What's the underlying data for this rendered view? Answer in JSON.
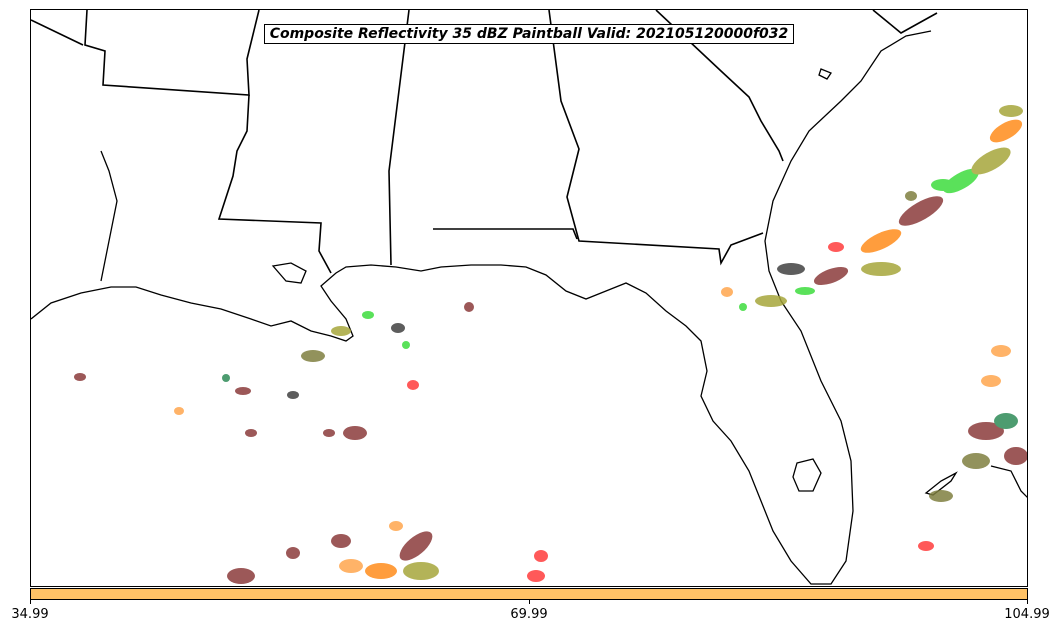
{
  "title": "Composite Reflectivity 35 dBZ Paintball Valid: 202105120000f032",
  "colorbar": {
    "color": "#ffc266",
    "ticks": [
      "34.99",
      "69.99",
      "104.99"
    ]
  },
  "colors": {
    "coastline": "#000000",
    "paintball": [
      "#8b3a3a",
      "#ff3b3b",
      "#3ddc3d",
      "#ff8c1a",
      "#a6a63a",
      "#404040",
      "#7f7f3f",
      "#ffa64d",
      "#2e8b57",
      "#6b0000"
    ]
  }
}
